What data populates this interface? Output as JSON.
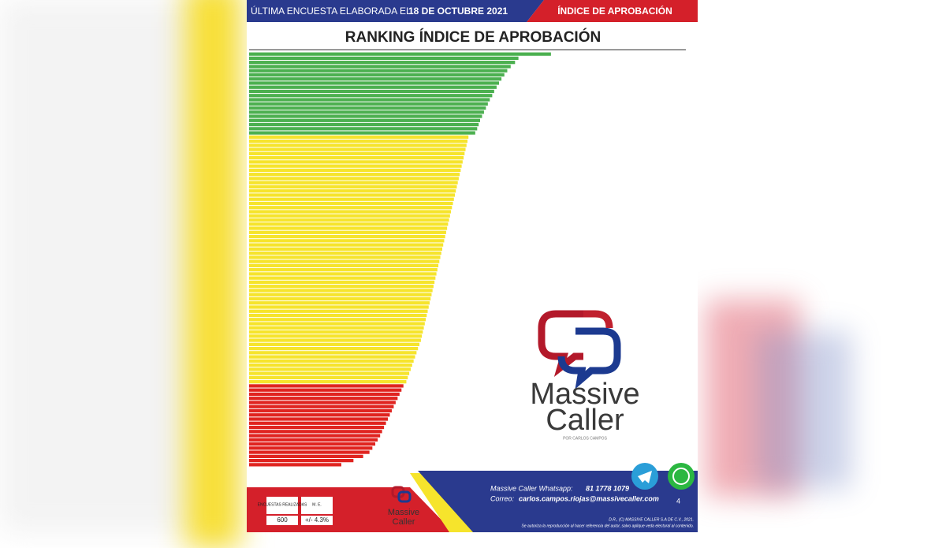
{
  "header": {
    "survey_label": "ÚLTIMA ENCUESTA ELABORADA EL",
    "date": "18 DE OCTUBRE 2021",
    "section": "ÍNDICE DE APROBACIÓN"
  },
  "chart_data": {
    "type": "hbar",
    "title": "RANKING ÍNDICE DE APROBACIÓN",
    "xlim": [
      0,
      90
    ],
    "values": [
      62.2,
      55.5,
      54.8,
      53.9,
      53.2,
      52.6,
      52.0,
      51.5,
      51.0,
      50.5,
      50.1,
      49.6,
      49.2,
      48.8,
      48.4,
      48.0,
      47.6,
      47.3,
      47.0,
      46.6,
      45.2,
      45.0,
      44.8,
      44.6,
      44.4,
      44.2,
      44.0,
      43.8,
      43.6,
      43.4,
      43.2,
      43.0,
      42.8,
      42.6,
      42.4,
      42.2,
      42.0,
      41.8,
      41.6,
      41.4,
      41.2,
      41.0,
      40.8,
      40.6,
      40.4,
      40.2,
      40.0,
      39.8,
      39.6,
      39.4,
      39.2,
      39.0,
      38.8,
      38.6,
      38.4,
      38.2,
      38.0,
      37.8,
      37.6,
      37.4,
      37.2,
      37.0,
      36.8,
      36.6,
      36.4,
      36.2,
      36.0,
      35.8,
      35.6,
      35.4,
      35.1,
      34.8,
      34.5,
      34.2,
      33.9,
      33.6,
      33.3,
      33.0,
      32.7,
      32.4,
      31.8,
      31.4,
      31.0,
      30.6,
      30.2,
      29.8,
      29.4,
      29.0,
      28.6,
      28.2,
      27.8,
      27.4,
      27.0,
      26.5,
      26.0,
      25.4,
      24.8,
      23.5,
      21.5,
      19.0
    ],
    "colors": [
      "#4cb050",
      "#4cb050",
      "#4cb050",
      "#4cb050",
      "#4cb050",
      "#4cb050",
      "#4cb050",
      "#4cb050",
      "#4cb050",
      "#4cb050",
      "#4cb050",
      "#4cb050",
      "#4cb050",
      "#4cb050",
      "#4cb050",
      "#4cb050",
      "#4cb050",
      "#4cb050",
      "#4cb050",
      "#4cb050",
      "#f6e42c",
      "#f6e42c",
      "#f6e42c",
      "#f6e42c",
      "#f6e42c",
      "#f6e42c",
      "#f6e42c",
      "#f6e42c",
      "#f6e42c",
      "#f6e42c",
      "#f6e42c",
      "#f6e42c",
      "#f6e42c",
      "#f6e42c",
      "#f6e42c",
      "#f6e42c",
      "#f6e42c",
      "#f6e42c",
      "#f6e42c",
      "#f6e42c",
      "#f6e42c",
      "#f6e42c",
      "#f6e42c",
      "#f6e42c",
      "#f6e42c",
      "#f6e42c",
      "#f6e42c",
      "#f6e42c",
      "#f6e42c",
      "#f6e42c",
      "#f6e42c",
      "#f6e42c",
      "#f6e42c",
      "#f6e42c",
      "#f6e42c",
      "#f6e42c",
      "#f6e42c",
      "#f6e42c",
      "#f6e42c",
      "#f6e42c",
      "#f6e42c",
      "#f6e42c",
      "#f6e42c",
      "#f6e42c",
      "#f6e42c",
      "#f6e42c",
      "#f6e42c",
      "#f6e42c",
      "#f6e42c",
      "#f6e42c",
      "#f6e42c",
      "#f6e42c",
      "#f6e42c",
      "#f6e42c",
      "#f6e42c",
      "#f6e42c",
      "#f6e42c",
      "#f6e42c",
      "#f6e42c",
      "#f6e42c",
      "#e02420",
      "#e02420",
      "#e02420",
      "#e02420",
      "#e02420",
      "#e02420",
      "#e02420",
      "#e02420",
      "#e02420",
      "#e02420",
      "#e02420",
      "#e02420",
      "#e02420",
      "#e02420",
      "#e02420",
      "#e02420",
      "#e02420",
      "#e02420",
      "#e02420",
      "#e02420"
    ]
  },
  "logo": {
    "line1": "Massive",
    "line2": "Caller",
    "tagline": "POR CARLOS CAMPOS"
  },
  "footer": {
    "table": {
      "headers": [
        "ENCUESTAS REALIZADAS",
        "M. E."
      ],
      "values": [
        "600",
        "+/- 4.3%"
      ]
    },
    "small_logo": {
      "line1": "Massive",
      "line2": "Caller"
    },
    "whatsapp_label": "Massive Caller Whatsapp:",
    "whatsapp": "81 1778 1079",
    "email_label": "Correo:",
    "email": "carlos.campos.riojas@massivecaller.com",
    "page": "4",
    "copyright": "D.R., (C) MASSIVE CALLER S.A DE C.V., 2021.",
    "notice": "Se autoriza la reproducción al hacer referencia del autor, salvo aplique veda electoral al contenido."
  }
}
